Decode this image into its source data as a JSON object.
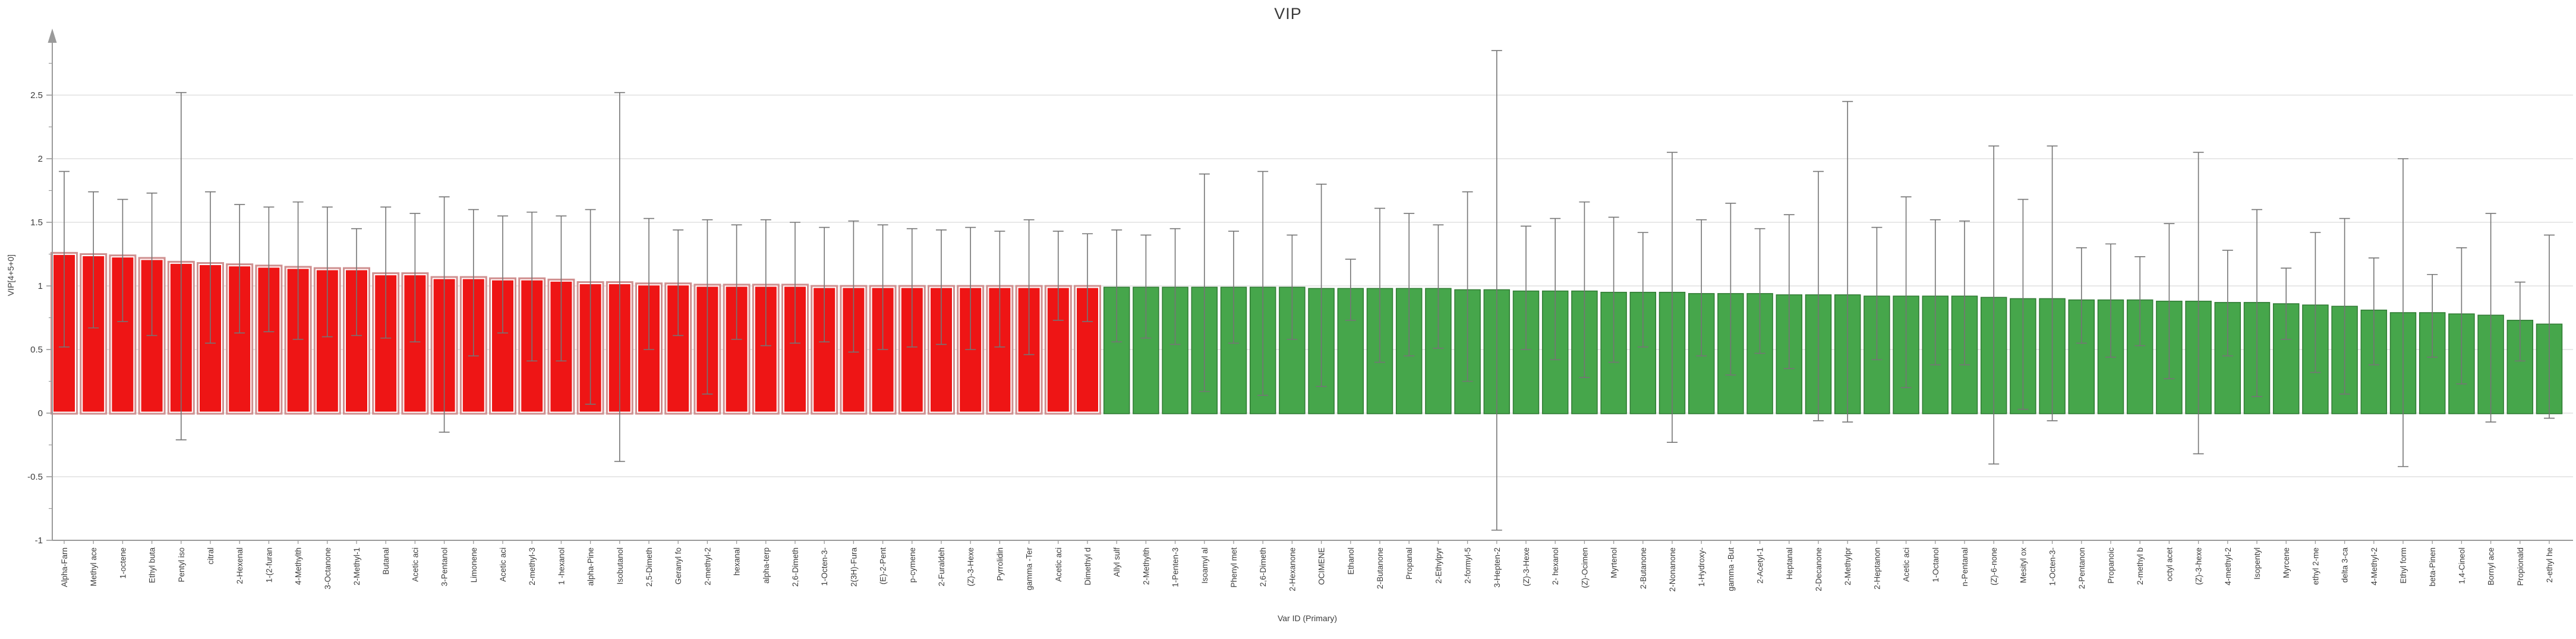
{
  "title": "VIP",
  "y_axis": {
    "label": "VIP[4+5+0]",
    "tick_labels": [
      "2.5",
      "2",
      "1.5",
      "1",
      "0.5",
      "0",
      "-0.5",
      "-1"
    ]
  },
  "x_axis": {
    "label": "Var ID (Primary)"
  },
  "chart_data": {
    "type": "bar",
    "title": "VIP",
    "xlabel": "Var ID (Primary)",
    "ylabel": "VIP[4+5+0]",
    "ylim": [
      -1,
      2.9
    ],
    "grid": true,
    "y_major_ticks": [
      2.5,
      2,
      1.5,
      1,
      0.5,
      0,
      -0.5,
      -1
    ],
    "threshold_index": 36,
    "colors": {
      "bar_above": "#ee1515",
      "bar_above_outline": "#cf9090",
      "bar_above_inner_outline": "#ffffff",
      "bar_below": "#46a64b",
      "bar_below_outline": "#2f7a33",
      "error_bar": "#757575",
      "axis": "#9a9a9a",
      "gridline": "#dadada",
      "text": "#3c3c3c"
    },
    "categories": [
      "Alpha-Farn",
      "Methyl ace",
      "1-octene",
      "Ethyl buta",
      "Pentyl iso",
      "citral",
      "2-Hexenal",
      "1-(2-furan",
      "4-Methylth",
      "3-Octanone",
      "2-Methyl-1",
      "Butanal",
      "Acetic aci",
      "3-Pentanol",
      "Limonene",
      "Acetic aci",
      "2-methyl-3",
      "1 -hexanol",
      "alpha-Pine",
      "Isobutanol",
      "2,5-Dimeth",
      "Geranyl fo",
      "2-methyl-2",
      "hexanal",
      "alpha-terp",
      "2,6-Dimeth",
      "1-Octen-3-",
      "2(3H)-Fura",
      "(E)-2-Pent",
      "p-cymene",
      "2-Furaldeh",
      "(Z)-3-Hexe",
      "Pyrrolidin",
      "gamma -Ter",
      "Acetic aci",
      "Dimethyl d",
      "Allyl sulf",
      "2-Methylth",
      "1-Penten-3",
      "Isoamyl al",
      "Phenyl met",
      "2,6-Dimeth",
      "2-Hexanone",
      "OCIMENE",
      "Ethanol",
      "2-Butanone",
      "Propanal",
      "2-Ethylpyr",
      "2-formyl-5",
      "3-Hepten-2",
      "(Z)-3-Hexe",
      "2- hexanol",
      "(Z)-Ocimen",
      "Myrtenol",
      "2-Butanone",
      "2-Nonanone",
      "1-Hydroxy-",
      "gamma -But",
      "2-Acetyl-1",
      "Heptanal",
      "2-Decanone",
      "2-Methylpr",
      "2-Heptanon",
      "Acetic aci",
      "1-Octanol",
      "n-Pentanal",
      "(Z)-6-none",
      "Mesityl ox",
      "1-Octen-3-",
      "2-Pentanon",
      "Propanoic",
      "2-methyl b",
      "octyl acet",
      "(Z)-3-hexe",
      "4-methyl-2",
      "Isopentyl",
      "Myrcene",
      "ethyl 2-me",
      "delta 3-ca",
      "4-Methyl-2",
      "Ethyl form",
      "beta-Pinen",
      "1,4-Cineol",
      "Bornyl ace",
      "Propionald",
      "2-ethyl he"
    ],
    "values": [
      1.26,
      1.25,
      1.24,
      1.22,
      1.19,
      1.18,
      1.17,
      1.16,
      1.15,
      1.14,
      1.14,
      1.1,
      1.1,
      1.07,
      1.07,
      1.06,
      1.06,
      1.05,
      1.03,
      1.03,
      1.02,
      1.02,
      1.01,
      1.01,
      1.01,
      1.01,
      1.0,
      1.0,
      1.0,
      1.0,
      1.0,
      1.0,
      1.0,
      1.0,
      1.0,
      1.0,
      0.99,
      0.99,
      0.99,
      0.99,
      0.99,
      0.99,
      0.99,
      0.98,
      0.98,
      0.98,
      0.98,
      0.98,
      0.97,
      0.97,
      0.96,
      0.96,
      0.96,
      0.95,
      0.95,
      0.95,
      0.94,
      0.94,
      0.94,
      0.93,
      0.93,
      0.93,
      0.92,
      0.92,
      0.92,
      0.92,
      0.91,
      0.9,
      0.9,
      0.89,
      0.89,
      0.89,
      0.88,
      0.88,
      0.87,
      0.87,
      0.86,
      0.85,
      0.84,
      0.81,
      0.79,
      0.79,
      0.78,
      0.77,
      0.73,
      0.7
    ],
    "error_upper": [
      1.9,
      1.74,
      1.68,
      1.73,
      2.52,
      1.74,
      1.64,
      1.62,
      1.66,
      1.62,
      1.45,
      1.62,
      1.57,
      1.7,
      1.6,
      1.55,
      1.58,
      1.55,
      1.6,
      2.52,
      1.53,
      1.44,
      1.52,
      1.48,
      1.52,
      1.5,
      1.46,
      1.51,
      1.48,
      1.45,
      1.44,
      1.46,
      1.43,
      1.52,
      1.43,
      1.41,
      1.44,
      1.4,
      1.45,
      1.88,
      1.43,
      1.9,
      1.4,
      1.8,
      1.21,
      1.61,
      1.57,
      1.48,
      1.74,
      2.85,
      1.47,
      1.53,
      1.66,
      1.54,
      1.42,
      2.05,
      1.52,
      1.65,
      1.45,
      1.56,
      1.9,
      2.45,
      1.46,
      1.7,
      1.52,
      1.51,
      2.1,
      1.68,
      2.1,
      1.3,
      1.33,
      1.23,
      1.49,
      2.05,
      1.28,
      1.6,
      1.14,
      1.42,
      1.53,
      1.22,
      2.0,
      1.09,
      1.3,
      1.57,
      1.03,
      1.4
    ],
    "error_lower": [
      0.52,
      0.67,
      0.72,
      0.61,
      -0.21,
      0.55,
      0.63,
      0.64,
      0.58,
      0.6,
      0.61,
      0.59,
      0.56,
      -0.15,
      0.45,
      0.63,
      0.41,
      0.41,
      0.07,
      -0.38,
      0.5,
      0.61,
      0.15,
      0.58,
      0.53,
      0.55,
      0.56,
      0.48,
      0.5,
      0.52,
      0.54,
      0.5,
      0.52,
      0.46,
      0.73,
      0.72,
      0.56,
      0.59,
      0.54,
      0.17,
      0.55,
      0.14,
      0.58,
      0.21,
      0.73,
      0.4,
      0.45,
      0.51,
      0.25,
      -0.92,
      0.5,
      0.42,
      0.28,
      0.4,
      0.52,
      -0.23,
      0.45,
      0.3,
      0.47,
      0.35,
      -0.06,
      -0.07,
      0.42,
      0.2,
      0.38,
      0.38,
      -0.4,
      0.03,
      -0.06,
      0.55,
      0.44,
      0.53,
      0.27,
      -0.32,
      0.45,
      0.13,
      0.58,
      0.32,
      0.15,
      0.38,
      -0.42,
      0.44,
      0.23,
      -0.07,
      0.41,
      -0.04
    ]
  }
}
